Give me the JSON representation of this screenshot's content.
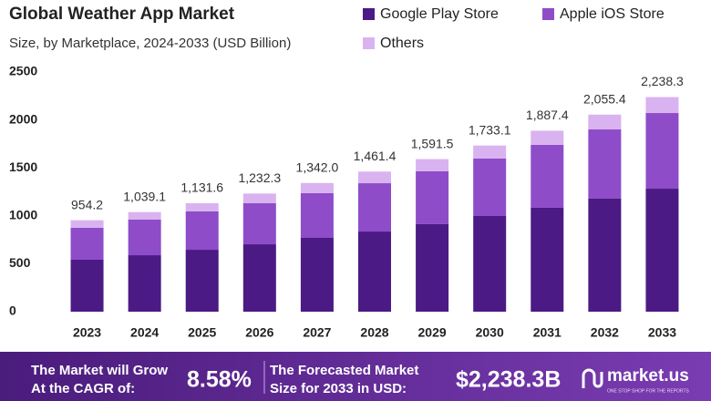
{
  "chart_data": {
    "type": "stacked_bar",
    "title": "Global Weather App Market",
    "subtitle": "Size, by Marketplace, 2024-2033 (USD Billion)",
    "categories": [
      "2023",
      "2024",
      "2025",
      "2026",
      "2027",
      "2028",
      "2029",
      "2030",
      "2031",
      "2032",
      "2033"
    ],
    "series": [
      {
        "name": "Google Play Store",
        "color": "#4b1a84",
        "values": [
          542,
          589,
          646,
          703,
          770,
          836,
          913,
          998,
          1084,
          1179,
          1283
        ]
      },
      {
        "name": "Apple iOS Store",
        "color": "#8e4cc9",
        "values": [
          333,
          371,
          400,
          428,
          466,
          504,
          551,
          599,
          656,
          722,
          789
        ]
      },
      {
        "name": "Others",
        "color": "#d9b3f0",
        "values": [
          79.2,
          79.1,
          85.6,
          101.3,
          106,
          121.4,
          127.5,
          136.1,
          147.4,
          154.4,
          166.3
        ]
      }
    ],
    "totals": [
      954.2,
      1039.1,
      1131.6,
      1232.3,
      1342.0,
      1461.4,
      1591.5,
      1733.1,
      1887.4,
      2055.4,
      2238.3
    ],
    "total_labels": [
      "954.2",
      "1,039.1",
      "1,131.6",
      "1,232.3",
      "1,342.0",
      "1,461.4",
      "1,591.5",
      "1,733.1",
      "1,887.4",
      "2,055.4",
      "2,238.3"
    ],
    "ylim": [
      0,
      2500
    ],
    "yticks": [
      0,
      500,
      1000,
      1500,
      2000,
      2500
    ],
    "grid": false
  },
  "footer": {
    "cagr_text": [
      "The Market will Grow",
      "At the CAGR of:"
    ],
    "cagr_value": "8.58%",
    "forecast_text": [
      "The Forecasted Market",
      "Size for 2033 in USD:"
    ],
    "forecast_value": "$2,238.3B",
    "brand": "market.us",
    "tagline": "ONE STOP SHOP FOR THE REPORTS"
  }
}
